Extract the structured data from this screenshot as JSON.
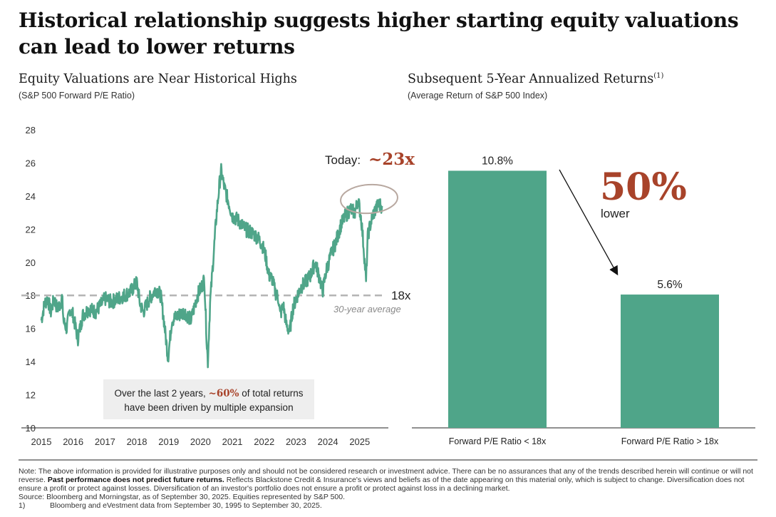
{
  "title": "Historical relationship suggests higher starting equity valuations can lead to lower returns",
  "colors": {
    "teal": "#4fa589",
    "accent": "#a8432a",
    "ring": "#b8a8a0",
    "dashed": "#b5b5b5"
  },
  "chart_data": [
    {
      "type": "line",
      "title": "Equity Valuations are Near Historical Highs",
      "subtitle": "(S&P 500 Forward P/E Ratio)",
      "xlim": [
        2015,
        2025.9
      ],
      "ylim": [
        10,
        28
      ],
      "x_ticks": [
        "2015",
        "2016",
        "2017",
        "2018",
        "2019",
        "2020",
        "2021",
        "2022",
        "2023",
        "2024",
        "2025"
      ],
      "y_ticks": [
        "10",
        "12",
        "14",
        "16",
        "18",
        "20",
        "22",
        "24",
        "26",
        "28"
      ],
      "grid": false,
      "series": [
        {
          "x": [
            2015.0,
            2015.1,
            2015.2,
            2015.3,
            2015.4,
            2015.5,
            2015.6,
            2015.65,
            2015.7,
            2015.8,
            2015.9,
            2016.0,
            2016.1,
            2016.15,
            2016.3,
            2016.5,
            2016.7,
            2016.9,
            2017.0,
            2017.2,
            2017.5,
            2017.8,
            2018.0,
            2018.1,
            2018.2,
            2018.4,
            2018.6,
            2018.75,
            2018.85,
            2018.98,
            2019.1,
            2019.3,
            2019.5,
            2019.7,
            2019.9,
            2020.05,
            2020.12,
            2020.2,
            2020.23,
            2020.3,
            2020.4,
            2020.5,
            2020.6,
            2020.65,
            2020.75,
            2020.9,
            2021.0,
            2021.2,
            2021.4,
            2021.6,
            2021.8,
            2021.95,
            2022.05,
            2022.15,
            2022.25,
            2022.35,
            2022.45,
            2022.5,
            2022.6,
            2022.7,
            2022.8,
            2022.9,
            2023.0,
            2023.15,
            2023.3,
            2023.45,
            2023.6,
            2023.75,
            2023.83,
            2023.95,
            2024.1,
            2024.25,
            2024.4,
            2024.55,
            2024.7,
            2024.85,
            2024.95,
            2025.05,
            2025.12,
            2025.2,
            2025.25,
            2025.3,
            2025.4,
            2025.5,
            2025.6,
            2025.7
          ],
          "y": [
            16.5,
            17.5,
            17.8,
            17.0,
            17.8,
            17.2,
            17.5,
            17.9,
            16.4,
            16.0,
            17.2,
            16.8,
            15.8,
            15.4,
            16.8,
            17.2,
            17.0,
            17.5,
            17.8,
            17.6,
            17.9,
            18.2,
            18.8,
            17.5,
            17.0,
            17.8,
            18.4,
            18.0,
            16.5,
            14.2,
            16.5,
            16.8,
            17.0,
            16.5,
            18.0,
            18.6,
            19.0,
            15.0,
            14.0,
            17.5,
            20.2,
            22.8,
            24.8,
            25.5,
            24.5,
            23.5,
            22.8,
            22.5,
            22.0,
            21.8,
            21.5,
            21.0,
            20.3,
            19.2,
            19.0,
            18.2,
            17.8,
            16.8,
            17.4,
            16.2,
            15.8,
            17.2,
            17.8,
            18.5,
            18.8,
            19.2,
            20.0,
            19.0,
            18.2,
            19.5,
            20.5,
            21.2,
            22.2,
            22.8,
            23.2,
            23.0,
            23.8,
            22.6,
            21.0,
            18.8,
            21.5,
            22.0,
            22.8,
            23.2,
            23.5,
            23.4
          ],
          "color": "#4fa589"
        }
      ],
      "reference_line": {
        "y": 18,
        "label": "18x",
        "caption": "30-year average"
      },
      "annotation_today": {
        "prefix": "Today:",
        "value": "~23x"
      },
      "callout": {
        "part1": "Over the last 2 years,",
        "highlight": "~60%",
        "part2": "of total returns",
        "line2": "have been driven by multiple expansion"
      }
    },
    {
      "type": "bar",
      "title": "Subsequent 5-Year Annualized Returns",
      "title_sup": "(1)",
      "subtitle": "(Average Return of S&P 500 Index)",
      "categories": [
        "Forward P/E Ratio < 18x",
        "Forward P/E Ratio > 18x"
      ],
      "values": [
        10.8,
        5.6
      ],
      "value_labels": [
        "10.8%",
        "5.6%"
      ],
      "ylim": [
        0,
        13
      ],
      "callout": {
        "value": "50%",
        "label": "lower"
      },
      "color": "#4fa589"
    }
  ],
  "footnote": {
    "note_before_bold": "Note: The above information is provided for illustrative purposes only and should not be considered research or investment advice. There can be no assurances that any of the trends described herein will continue or will not reverse. ",
    "note_bold": "Past performance does not predict future returns.",
    "note_after_bold": " Reflects Blackstone Credit & Insurance's views and beliefs as of the date appearing on this material only, which is subject to change. Diversification does not ensure a profit or protect against losses. Diversification of an investor's portfolio does not ensure a profit or protect against loss in a declining market.",
    "source": "Source: Bloomberg and Morningstar, as of September 30, 2025. Equities represented by S&P 500.",
    "ref_number": "1)",
    "ref_text": "Bloomberg and eVestment data from September 30, 1995 to September 30, 2025."
  }
}
